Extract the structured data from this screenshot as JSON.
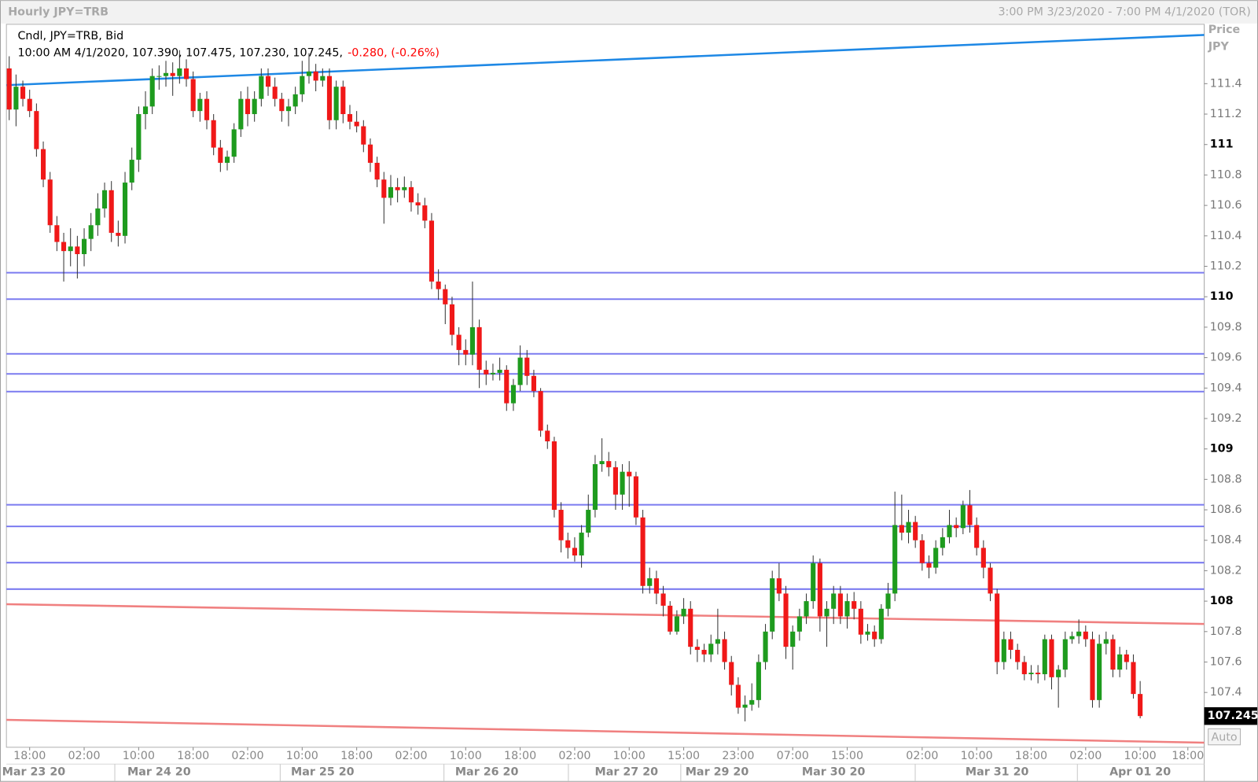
{
  "header": {
    "title": "Hourly JPY=TRB",
    "range": "3:00 PM 3/23/2020 - 7:00 PM 4/1/2020 (TOR)"
  },
  "chart_data": {
    "type": "candlestick",
    "legend": {
      "line1": "Cndl, JPY=TRB, Bid",
      "line2": "10:00 AM 4/1/2020, 107.390, 107.475, 107.230, 107.245,",
      "change": "-0.280, (-0.26%)",
      "change_color": "#ff0000"
    },
    "axis_title": "Price",
    "axis_unit": "JPY",
    "auto_button": "Auto",
    "up_color": "#1e9b1e",
    "down_color": "#f01818",
    "wick_color": "#333333",
    "ylim": [
      107.04,
      111.79
    ],
    "yticks": [
      107.4,
      107.6,
      107.8,
      108,
      108.2,
      108.4,
      108.6,
      108.8,
      109,
      109.2,
      109.4,
      109.6,
      109.8,
      110,
      110.2,
      110.4,
      110.6,
      110.8,
      111,
      111.2,
      111.4
    ],
    "xlim": [
      -0.41,
      175.4
    ],
    "xticks": [
      {
        "value": 3,
        "label": "18:00"
      },
      {
        "value": 11,
        "label": "02:00"
      },
      {
        "value": 19,
        "label": "10:00"
      },
      {
        "value": 27,
        "label": "18:00"
      },
      {
        "value": 35,
        "label": "02:00"
      },
      {
        "value": 43,
        "label": "10:00"
      },
      {
        "value": 51,
        "label": "18:00"
      },
      {
        "value": 59,
        "label": "02:00"
      },
      {
        "value": 67,
        "label": "10:00"
      },
      {
        "value": 75,
        "label": "18:00"
      },
      {
        "value": 83,
        "label": "02:00"
      },
      {
        "value": 91,
        "label": "10:00"
      },
      {
        "value": 99,
        "label": "15:00"
      },
      {
        "value": 107,
        "label": "23:00"
      },
      {
        "value": 115,
        "label": "07:00"
      },
      {
        "value": 123,
        "label": "15:00"
      },
      {
        "value": 134,
        "label": "02:00"
      },
      {
        "value": 142,
        "label": "10:00"
      },
      {
        "value": 150,
        "label": "18:00"
      },
      {
        "value": 158,
        "label": "02:00"
      },
      {
        "value": 166,
        "label": "10:00"
      },
      {
        "value": 173,
        "label": "18:00"
      }
    ],
    "date_ticks": [
      {
        "value": 3.6,
        "label": "Mar 23 20"
      },
      {
        "value": 22,
        "label": "Mar 24 20"
      },
      {
        "value": 46,
        "label": "Mar 25 20"
      },
      {
        "value": 70.1,
        "label": "Mar 26 20"
      },
      {
        "value": 90.6,
        "label": "Mar 27 20"
      },
      {
        "value": 103.9,
        "label": "Mar 29 20"
      },
      {
        "value": 121,
        "label": "Mar 30 20"
      },
      {
        "value": 145,
        "label": "Mar 31 20"
      },
      {
        "value": 166,
        "label": "Apr 01 20"
      }
    ],
    "hlines": {
      "color": "#7b7bf0",
      "values": [
        110.158,
        109.984,
        109.625,
        109.493,
        109.377,
        108.633,
        108.491,
        108.253,
        108.079
      ]
    },
    "trendlines": [
      {
        "color": "#1e88e5",
        "x": [
          -0.41,
          175.4
        ],
        "y": [
          111.39,
          111.72
        ]
      },
      {
        "color": "#f08080",
        "x": [
          -0.41,
          175.4
        ],
        "y": [
          107.98,
          107.85
        ]
      },
      {
        "color": "#f08080",
        "x": [
          -0.41,
          175.4
        ],
        "y": [
          107.22,
          107.07
        ]
      }
    ],
    "last_price": 107.245,
    "ohlc": [
      [
        111.5,
        111.58,
        111.16,
        111.23
      ],
      [
        111.23,
        111.46,
        111.12,
        111.38
      ],
      [
        111.38,
        111.42,
        111.25,
        111.3
      ],
      [
        111.3,
        111.36,
        111.18,
        111.22
      ],
      [
        111.22,
        111.27,
        110.92,
        110.97
      ],
      [
        110.97,
        111.02,
        110.72,
        110.77
      ],
      [
        110.77,
        110.82,
        110.42,
        110.47
      ],
      [
        110.47,
        110.53,
        110.3,
        110.36
      ],
      [
        110.36,
        110.42,
        110.1,
        110.3
      ],
      [
        110.3,
        110.45,
        110.2,
        110.33
      ],
      [
        110.33,
        110.4,
        110.12,
        110.28
      ],
      [
        110.28,
        110.45,
        110.2,
        110.38
      ],
      [
        110.38,
        110.55,
        110.3,
        110.47
      ],
      [
        110.47,
        110.68,
        110.4,
        110.58
      ],
      [
        110.58,
        110.75,
        110.52,
        110.7
      ],
      [
        110.7,
        110.76,
        110.36,
        110.42
      ],
      [
        110.42,
        110.5,
        110.33,
        110.4
      ],
      [
        110.4,
        110.82,
        110.35,
        110.75
      ],
      [
        110.75,
        110.98,
        110.7,
        110.9
      ],
      [
        110.9,
        111.25,
        110.82,
        111.2
      ],
      [
        111.2,
        111.35,
        111.1,
        111.25
      ],
      [
        111.25,
        111.5,
        111.2,
        111.45
      ],
      [
        111.45,
        111.52,
        111.36,
        111.45
      ],
      [
        111.45,
        111.55,
        111.38,
        111.47
      ],
      [
        111.47,
        111.54,
        111.32,
        111.45
      ],
      [
        111.45,
        111.62,
        111.4,
        111.5
      ],
      [
        111.5,
        111.56,
        111.38,
        111.43
      ],
      [
        111.43,
        111.48,
        111.18,
        111.22
      ],
      [
        111.22,
        111.34,
        111.15,
        111.3
      ],
      [
        111.3,
        111.35,
        111.1,
        111.16
      ],
      [
        111.16,
        111.2,
        110.93,
        110.98
      ],
      [
        110.98,
        111.03,
        110.82,
        110.88
      ],
      [
        110.88,
        110.96,
        110.83,
        110.92
      ],
      [
        110.92,
        111.14,
        110.88,
        111.1
      ],
      [
        111.1,
        111.35,
        111.05,
        111.3
      ],
      [
        111.3,
        111.38,
        111.12,
        111.2
      ],
      [
        111.2,
        111.35,
        111.15,
        111.3
      ],
      [
        111.3,
        111.5,
        111.25,
        111.45
      ],
      [
        111.45,
        111.5,
        111.32,
        111.38
      ],
      [
        111.38,
        111.44,
        111.25,
        111.3
      ],
      [
        111.3,
        111.34,
        111.15,
        111.22
      ],
      [
        111.22,
        111.3,
        111.12,
        111.25
      ],
      [
        111.25,
        111.38,
        111.2,
        111.33
      ],
      [
        111.33,
        111.55,
        111.28,
        111.45
      ],
      [
        111.45,
        111.6,
        111.4,
        111.48
      ],
      [
        111.48,
        111.53,
        111.35,
        111.42
      ],
      [
        111.42,
        111.5,
        111.38,
        111.45
      ],
      [
        111.45,
        111.5,
        111.1,
        111.16
      ],
      [
        111.16,
        111.42,
        111.1,
        111.38
      ],
      [
        111.38,
        111.42,
        111.14,
        111.2
      ],
      [
        111.2,
        111.26,
        111.1,
        111.15
      ],
      [
        111.15,
        111.22,
        111.08,
        111.12
      ],
      [
        111.12,
        111.16,
        110.95,
        111.0
      ],
      [
        111.0,
        111.04,
        110.82,
        110.88
      ],
      [
        110.88,
        110.92,
        110.72,
        110.77
      ],
      [
        110.77,
        110.82,
        110.48,
        110.65
      ],
      [
        110.65,
        110.8,
        110.6,
        110.72
      ],
      [
        110.72,
        110.78,
        110.62,
        110.7
      ],
      [
        110.7,
        110.79,
        110.65,
        110.72
      ],
      [
        110.72,
        110.76,
        110.56,
        110.62
      ],
      [
        110.62,
        110.68,
        110.54,
        110.6
      ],
      [
        110.6,
        110.65,
        110.45,
        110.5
      ],
      [
        110.5,
        110.55,
        110.05,
        110.1
      ],
      [
        110.1,
        110.18,
        109.98,
        110.05
      ],
      [
        110.05,
        110.08,
        109.82,
        109.95
      ],
      [
        109.95,
        110.0,
        109.68,
        109.75
      ],
      [
        109.75,
        109.8,
        109.55,
        109.65
      ],
      [
        109.65,
        109.72,
        109.55,
        109.62
      ],
      [
        109.62,
        110.1,
        109.55,
        109.8
      ],
      [
        109.8,
        109.85,
        109.4,
        109.52
      ],
      [
        109.52,
        109.58,
        109.42,
        109.49
      ],
      [
        109.49,
        109.56,
        109.45,
        109.5
      ],
      [
        109.5,
        109.6,
        109.45,
        109.52
      ],
      [
        109.52,
        109.55,
        109.25,
        109.3
      ],
      [
        109.3,
        109.46,
        109.25,
        109.42
      ],
      [
        109.42,
        109.68,
        109.38,
        109.6
      ],
      [
        109.6,
        109.65,
        109.42,
        109.48
      ],
      [
        109.48,
        109.52,
        109.34,
        109.38
      ],
      [
        109.38,
        109.4,
        109.08,
        109.12
      ],
      [
        109.12,
        109.16,
        109.0,
        109.05
      ],
      [
        109.05,
        109.08,
        108.55,
        108.6
      ],
      [
        108.6,
        108.65,
        108.32,
        108.4
      ],
      [
        108.4,
        108.45,
        108.28,
        108.35
      ],
      [
        108.35,
        108.42,
        108.26,
        108.3
      ],
      [
        108.3,
        108.5,
        108.22,
        108.45
      ],
      [
        108.45,
        108.7,
        108.42,
        108.6
      ],
      [
        108.6,
        108.96,
        108.55,
        108.9
      ],
      [
        108.9,
        109.07,
        108.85,
        108.92
      ],
      [
        108.92,
        108.98,
        108.82,
        108.88
      ],
      [
        108.88,
        108.92,
        108.6,
        108.7
      ],
      [
        108.7,
        108.9,
        108.6,
        108.85
      ],
      [
        108.85,
        108.92,
        108.62,
        108.82
      ],
      [
        108.82,
        108.85,
        108.5,
        108.55
      ],
      [
        108.55,
        108.6,
        108.05,
        108.1
      ],
      [
        108.1,
        108.22,
        108.05,
        108.15
      ],
      [
        108.15,
        108.2,
        107.98,
        108.05
      ],
      [
        108.05,
        108.1,
        107.9,
        107.97
      ],
      [
        107.97,
        108.0,
        107.78,
        107.8
      ],
      [
        107.8,
        107.94,
        107.78,
        107.9
      ],
      [
        107.9,
        108.02,
        107.85,
        107.95
      ],
      [
        107.95,
        108.0,
        107.65,
        107.7
      ],
      [
        107.7,
        107.75,
        107.6,
        107.68
      ],
      [
        107.68,
        107.72,
        107.6,
        107.65
      ],
      [
        107.65,
        107.78,
        107.6,
        107.72
      ],
      [
        107.72,
        107.95,
        107.65,
        107.75
      ],
      [
        107.75,
        107.8,
        107.55,
        107.6
      ],
      [
        107.6,
        107.64,
        107.38,
        107.45
      ],
      [
        107.45,
        107.5,
        107.26,
        107.3
      ],
      [
        107.3,
        107.38,
        107.21,
        107.32
      ],
      [
        107.32,
        107.46,
        107.28,
        107.35
      ],
      [
        107.35,
        107.65,
        107.3,
        107.6
      ],
      [
        107.6,
        107.85,
        107.55,
        107.8
      ],
      [
        107.8,
        108.2,
        107.75,
        108.15
      ],
      [
        108.15,
        108.25,
        108.0,
        108.05
      ],
      [
        108.05,
        108.1,
        107.62,
        107.7
      ],
      [
        107.7,
        107.84,
        107.55,
        107.8
      ],
      [
        107.8,
        107.95,
        107.74,
        107.9
      ],
      [
        107.9,
        108.05,
        107.85,
        108.0
      ],
      [
        108.0,
        108.3,
        107.95,
        108.25
      ],
      [
        108.25,
        108.28,
        107.8,
        107.9
      ],
      [
        107.9,
        108.0,
        107.7,
        107.95
      ],
      [
        107.95,
        108.1,
        107.85,
        108.05
      ],
      [
        108.05,
        108.1,
        107.85,
        107.9
      ],
      [
        107.9,
        108.05,
        107.82,
        108.0
      ],
      [
        108.0,
        108.06,
        107.88,
        107.95
      ],
      [
        107.95,
        108.0,
        107.72,
        107.78
      ],
      [
        107.78,
        107.85,
        107.74,
        107.8
      ],
      [
        107.8,
        107.84,
        107.7,
        107.75
      ],
      [
        107.75,
        107.98,
        107.72,
        107.95
      ],
      [
        107.95,
        108.12,
        107.9,
        108.05
      ],
      [
        108.05,
        108.72,
        108.0,
        108.5
      ],
      [
        108.5,
        108.7,
        108.4,
        108.45
      ],
      [
        108.45,
        108.6,
        108.38,
        108.52
      ],
      [
        108.52,
        108.56,
        108.35,
        108.4
      ],
      [
        108.4,
        108.44,
        108.2,
        108.25
      ],
      [
        108.25,
        108.3,
        108.15,
        108.22
      ],
      [
        108.22,
        108.4,
        108.18,
        108.35
      ],
      [
        108.35,
        108.48,
        108.3,
        108.42
      ],
      [
        108.42,
        108.6,
        108.38,
        108.5
      ],
      [
        108.5,
        108.55,
        108.42,
        108.48
      ],
      [
        108.48,
        108.66,
        108.44,
        108.63
      ],
      [
        108.63,
        108.73,
        108.45,
        108.5
      ],
      [
        108.5,
        108.55,
        108.3,
        108.35
      ],
      [
        108.35,
        108.4,
        108.15,
        108.22
      ],
      [
        108.22,
        108.25,
        108.0,
        108.05
      ],
      [
        108.05,
        108.08,
        107.52,
        107.6
      ],
      [
        107.6,
        107.8,
        107.55,
        107.75
      ],
      [
        107.75,
        107.8,
        107.62,
        107.68
      ],
      [
        107.68,
        107.72,
        107.55,
        107.6
      ],
      [
        107.6,
        107.64,
        107.48,
        107.52
      ],
      [
        107.52,
        107.58,
        107.48,
        107.53
      ],
      [
        107.53,
        107.58,
        107.46,
        107.52
      ],
      [
        107.52,
        107.78,
        107.48,
        107.75
      ],
      [
        107.75,
        107.78,
        107.42,
        107.5
      ],
      [
        107.5,
        107.58,
        107.3,
        107.55
      ],
      [
        107.55,
        107.8,
        107.5,
        107.75
      ],
      [
        107.75,
        107.8,
        107.72,
        107.77
      ],
      [
        107.77,
        107.88,
        107.72,
        107.8
      ],
      [
        107.8,
        107.84,
        107.7,
        107.75
      ],
      [
        107.75,
        107.8,
        107.3,
        107.35
      ],
      [
        107.35,
        107.78,
        107.3,
        107.72
      ],
      [
        107.72,
        107.8,
        107.65,
        107.75
      ],
      [
        107.75,
        107.78,
        107.5,
        107.55
      ],
      [
        107.55,
        107.7,
        107.5,
        107.65
      ],
      [
        107.65,
        107.68,
        107.55,
        107.6
      ],
      [
        107.6,
        107.65,
        107.36,
        107.39
      ],
      [
        107.39,
        107.475,
        107.23,
        107.245
      ]
    ]
  }
}
